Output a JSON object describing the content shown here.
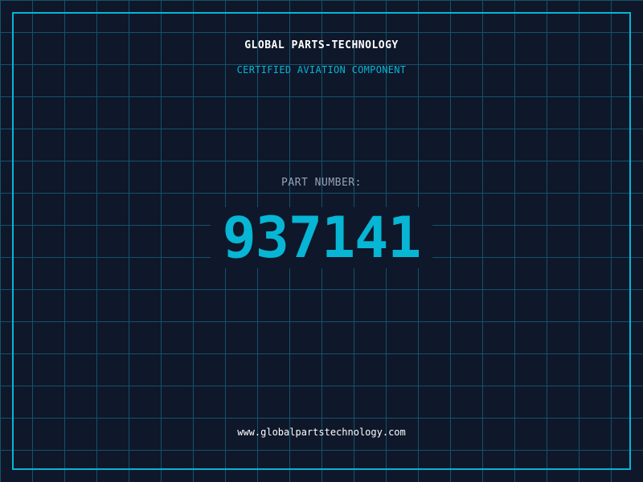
{
  "header": {
    "title": "GLOBAL PARTS-TECHNOLOGY",
    "subtitle": "CERTIFIED AVIATION COMPONENT"
  },
  "part": {
    "label": "PART NUMBER:",
    "number": "937141"
  },
  "footer": {
    "url": "www.globalpartstechnology.com"
  },
  "colors": {
    "background": "#0f172a",
    "accent": "#06b6d4",
    "grid": "#155e75"
  }
}
